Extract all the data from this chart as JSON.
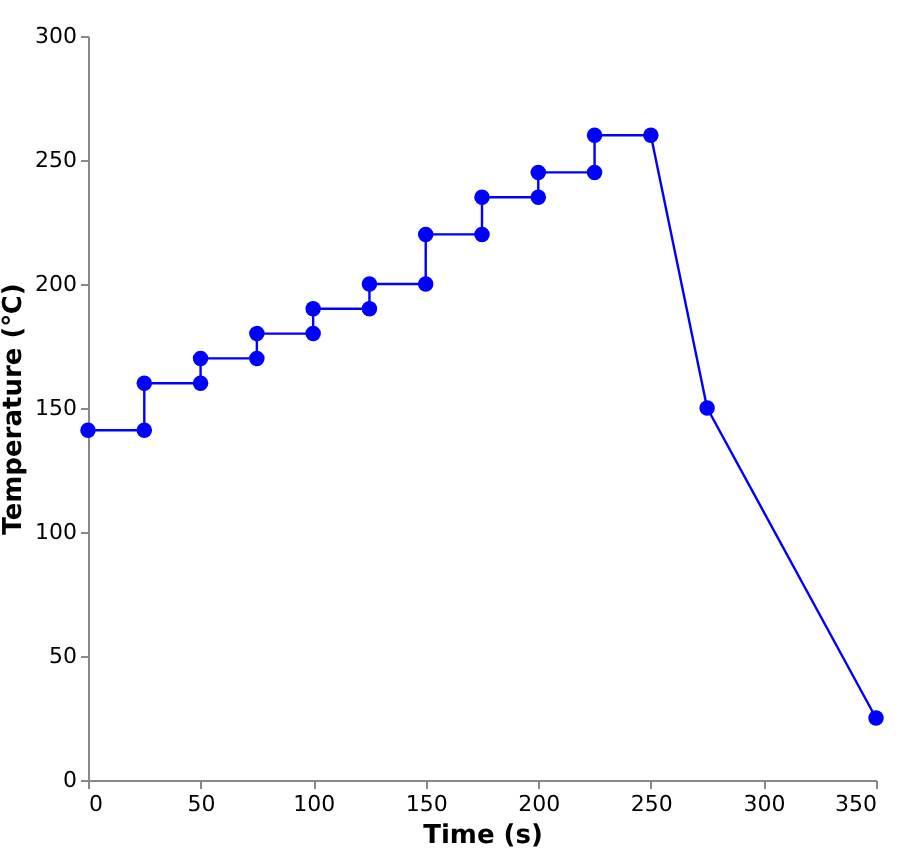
{
  "chart_data": {
    "type": "line",
    "xlabel": "Time (s)",
    "ylabel": "Temperature (℃)",
    "x": [
      0,
      25,
      25,
      50,
      50,
      75,
      75,
      100,
      100,
      125,
      125,
      150,
      150,
      175,
      175,
      200,
      200,
      225,
      225,
      250,
      275,
      350
    ],
    "series": [
      {
        "color": "#0000ff",
        "values": [
          141,
          141,
          160,
          160,
          170,
          170,
          180,
          180,
          190,
          190,
          200,
          200,
          220,
          220,
          235,
          235,
          245,
          245,
          260,
          260,
          150,
          25
        ]
      }
    ],
    "xlim": [
      0,
      350
    ],
    "xticks": [
      0,
      50,
      100,
      150,
      200,
      250,
      300,
      350
    ],
    "ylim": [
      0,
      300
    ],
    "yticks": [
      0,
      50,
      100,
      150,
      200,
      250,
      300
    ],
    "marker": "circle",
    "line_style": "solid",
    "grid": false
  }
}
